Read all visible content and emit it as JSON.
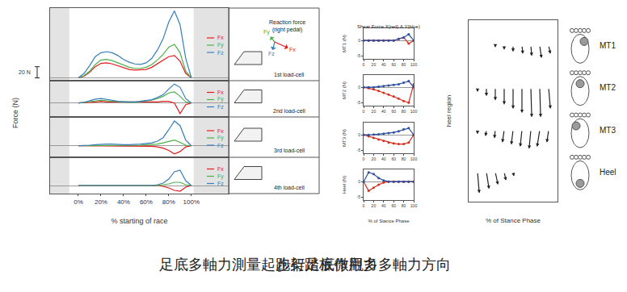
{
  "chart_data": [
    {
      "type": "line",
      "title": "1st load-cell",
      "x": [
        0,
        5,
        10,
        15,
        20,
        25,
        30,
        35,
        40,
        45,
        50,
        55,
        60,
        65,
        70,
        75,
        80,
        85,
        90,
        95,
        100
      ],
      "xlim": [
        -25,
        133
      ],
      "ylim": [
        -5,
        125
      ],
      "tick_labels": false,
      "legend": "right",
      "grid": false,
      "series": [
        {
          "name": "Fx",
          "color": "#e41a1c",
          "values": [
            0,
            3,
            10,
            20,
            26,
            27,
            25,
            22,
            18,
            15,
            14,
            14,
            15,
            19,
            25,
            31,
            38,
            40,
            30,
            8,
            0
          ]
        },
        {
          "name": "Fy",
          "color": "#4daf4a",
          "values": [
            0,
            4,
            12,
            24,
            32,
            33,
            31,
            27,
            22,
            19,
            17,
            17,
            19,
            24,
            32,
            42,
            55,
            60,
            45,
            12,
            0
          ]
        },
        {
          "name": "Fz",
          "color": "#377eb8",
          "values": [
            0,
            8,
            22,
            38,
            45,
            47,
            45,
            40,
            33,
            28,
            25,
            24,
            27,
            35,
            50,
            70,
            100,
            120,
            95,
            35,
            0
          ]
        }
      ]
    },
    {
      "type": "line",
      "title": "2nd load-cell",
      "x": [
        0,
        5,
        10,
        15,
        20,
        25,
        30,
        35,
        40,
        45,
        50,
        55,
        60,
        65,
        70,
        75,
        80,
        85,
        90,
        95,
        100
      ],
      "xlim": [
        -25,
        133
      ],
      "ylim": [
        -25,
        40
      ],
      "tick_labels": false,
      "legend": "right",
      "grid": false,
      "series": [
        {
          "name": "Fx",
          "color": "#e41a1c",
          "values": [
            0,
            0,
            1,
            2,
            3,
            2,
            2,
            1,
            1,
            1,
            1,
            1,
            1,
            2,
            2,
            3,
            3,
            0,
            -19,
            -3,
            0
          ]
        },
        {
          "name": "Fy",
          "color": "#4daf4a",
          "values": [
            0,
            1,
            2,
            4,
            5,
            4,
            3,
            2,
            1,
            1,
            1,
            2,
            3,
            5,
            8,
            12,
            18,
            20,
            12,
            2,
            0
          ]
        },
        {
          "name": "Fz",
          "color": "#377eb8",
          "values": [
            0,
            1,
            4,
            7,
            8,
            7,
            5,
            3,
            2,
            2,
            2,
            3,
            4,
            6,
            10,
            15,
            25,
            34,
            28,
            8,
            0
          ]
        }
      ]
    },
    {
      "type": "line",
      "title": "3rd load-cell",
      "x": [
        0,
        5,
        10,
        15,
        20,
        25,
        30,
        35,
        40,
        45,
        50,
        55,
        60,
        65,
        70,
        75,
        80,
        85,
        90,
        95,
        100
      ],
      "xlim": [
        -25,
        133
      ],
      "ylim": [
        -20,
        50
      ],
      "tick_labels": false,
      "legend": "right",
      "grid": false,
      "series": [
        {
          "name": "Fx",
          "color": "#e41a1c",
          "values": [
            0,
            0,
            0,
            0,
            0,
            0,
            0,
            0,
            0,
            0,
            0,
            0,
            0,
            -1,
            -2,
            -4,
            -8,
            -14,
            -10,
            -2,
            0
          ]
        },
        {
          "name": "Fy",
          "color": "#4daf4a",
          "values": [
            0,
            0,
            0,
            1,
            1,
            1,
            1,
            1,
            1,
            1,
            1,
            1,
            2,
            2,
            3,
            5,
            8,
            10,
            6,
            1,
            0
          ]
        },
        {
          "name": "Fz",
          "color": "#377eb8",
          "values": [
            0,
            0,
            1,
            2,
            3,
            3,
            3,
            2,
            2,
            2,
            2,
            3,
            4,
            5,
            8,
            14,
            28,
            43,
            35,
            10,
            0
          ]
        }
      ]
    },
    {
      "type": "line",
      "title": "4th load-cell",
      "xlabel": "% starting of race",
      "x": [
        0,
        5,
        10,
        15,
        20,
        25,
        30,
        35,
        40,
        45,
        50,
        55,
        60,
        65,
        70,
        75,
        80,
        85,
        90,
        95,
        100
      ],
      "xlim": [
        -25,
        133
      ],
      "ylim": [
        -10,
        35
      ],
      "tick_labels": "x",
      "legend": "right",
      "grid": false,
      "xticks": [
        {
          "value": 0,
          "label": "0%"
        },
        {
          "value": 20,
          "label": "20%"
        },
        {
          "value": 40,
          "label": "40%"
        },
        {
          "value": 60,
          "label": "60%"
        },
        {
          "value": 80,
          "label": "80%"
        },
        {
          "value": 100,
          "label": "100%"
        }
      ],
      "series": [
        {
          "name": "Fx",
          "color": "#e41a1c",
          "values": [
            0,
            0,
            0,
            0,
            0,
            0,
            0,
            0,
            0,
            0,
            0,
            0,
            0,
            0,
            0,
            -1,
            -3,
            -6,
            -7,
            -2,
            0
          ]
        },
        {
          "name": "Fy",
          "color": "#4daf4a",
          "values": [
            0,
            0,
            0,
            0,
            0,
            0,
            0,
            0,
            0,
            0,
            0,
            0,
            0,
            0,
            0,
            1,
            2,
            4,
            4,
            1,
            0
          ]
        },
        {
          "name": "Fz",
          "color": "#377eb8",
          "values": [
            0,
            0,
            0,
            0,
            0,
            0,
            0,
            0,
            0,
            0,
            0,
            0,
            0,
            0,
            1,
            3,
            8,
            17,
            19,
            6,
            0
          ]
        }
      ]
    },
    {
      "type": "line",
      "title": "Shear Force X(red) & Y(blue)",
      "ylabel": "MT1 (N)",
      "x": [
        0,
        10,
        20,
        30,
        40,
        50,
        60,
        70,
        80,
        90,
        100
      ],
      "xlim": [
        0,
        100
      ],
      "ylim": [
        -6,
        4
      ],
      "xticks": [
        0,
        20,
        40,
        60,
        80,
        100
      ],
      "yticks": [
        -5,
        0
      ],
      "tick_labels": true,
      "grid": false,
      "series": [
        {
          "name": "X",
          "color": "#d7301f",
          "marker": "circle",
          "values": [
            0,
            0,
            0,
            0,
            0,
            0,
            0,
            0.5,
            1,
            -1,
            0
          ]
        },
        {
          "name": "Y",
          "color": "#2b4ea2",
          "marker": "circle",
          "values": [
            0,
            0,
            0,
            0,
            0,
            0,
            0,
            0.5,
            1,
            2,
            0
          ]
        }
      ]
    },
    {
      "type": "line",
      "ylabel": "MT2 (N)",
      "x": [
        0,
        10,
        20,
        30,
        40,
        50,
        60,
        70,
        80,
        90,
        100
      ],
      "xlim": [
        0,
        100
      ],
      "ylim": [
        -6,
        4
      ],
      "xticks": [
        0,
        20,
        40,
        60,
        80,
        100
      ],
      "yticks": [
        -5,
        0
      ],
      "tick_labels": true,
      "grid": false,
      "series": [
        {
          "name": "X",
          "color": "#d7301f",
          "marker": "circle",
          "values": [
            0,
            -0.3,
            -0.7,
            -1.2,
            -1.8,
            -2.4,
            -3,
            -3.7,
            -4.5,
            -5,
            1
          ]
        },
        {
          "name": "Y",
          "color": "#2b4ea2",
          "marker": "circle",
          "values": [
            0,
            0,
            0,
            0.2,
            0.4,
            0.6,
            0.8,
            1,
            1.5,
            2,
            0
          ]
        }
      ]
    },
    {
      "type": "line",
      "ylabel": "MT3 (N)",
      "x": [
        0,
        10,
        20,
        30,
        40,
        50,
        60,
        70,
        80,
        90,
        100
      ],
      "xlim": [
        0,
        100
      ],
      "ylim": [
        -6,
        4
      ],
      "xticks": [
        0,
        20,
        40,
        60,
        80,
        100
      ],
      "yticks": [
        -5,
        0
      ],
      "tick_labels": true,
      "grid": false,
      "series": [
        {
          "name": "X",
          "color": "#d7301f",
          "marker": "circle",
          "values": [
            0,
            -0.5,
            -1,
            -1.5,
            -2,
            -2.5,
            -2.8,
            -3,
            -3,
            -2.5,
            0
          ]
        },
        {
          "name": "Y",
          "color": "#2b4ea2",
          "marker": "circle",
          "values": [
            0,
            0,
            0.1,
            0.2,
            0.4,
            0.6,
            0.8,
            1.2,
            1.8,
            2.2,
            0
          ]
        }
      ]
    },
    {
      "type": "line",
      "ylabel": "Heel (N)",
      "xlabel": "% of Stance Phase",
      "x": [
        0,
        10,
        20,
        30,
        40,
        50,
        60,
        70,
        80,
        90,
        100
      ],
      "xlim": [
        0,
        100
      ],
      "ylim": [
        -6,
        4
      ],
      "xticks": [
        0,
        20,
        40,
        60,
        80,
        100
      ],
      "yticks": [
        -5,
        0
      ],
      "tick_labels": true,
      "grid": false,
      "series": [
        {
          "name": "X",
          "color": "#d7301f",
          "marker": "circle",
          "values": [
            0,
            -3,
            -2,
            -1,
            -0.3,
            0,
            0,
            0,
            0,
            0,
            0
          ]
        },
        {
          "name": "Y",
          "color": "#2b4ea2",
          "marker": "circle",
          "values": [
            0,
            3,
            2.5,
            1.2,
            0.4,
            0,
            0,
            0,
            0,
            0,
            0
          ]
        }
      ]
    },
    {
      "type": "quiver",
      "xlabel": "% of Stance Phase",
      "ylabel": "heel region",
      "xlim": [
        0,
        100
      ],
      "ylim": [
        -0.7,
        3.6
      ],
      "tick_labels": false,
      "grid": false,
      "x": [
        10,
        20,
        30,
        40,
        50,
        60,
        70,
        80,
        90
      ],
      "rows": [
        {
          "name": "MT1",
          "y": 3,
          "dx": [
            0,
            0,
            0,
            0,
            0,
            1,
            1,
            2,
            2
          ],
          "dy": [
            0,
            0,
            -0.05,
            -0.1,
            -0.15,
            -0.2,
            -0.25,
            -0.3,
            -0.2
          ]
        },
        {
          "name": "MT2",
          "y": 2,
          "dx": [
            0,
            0,
            0,
            0,
            0,
            0,
            1,
            1,
            2
          ],
          "dy": [
            -0.1,
            -0.2,
            -0.3,
            -0.4,
            -0.5,
            -0.6,
            -0.7,
            -0.7,
            -0.5
          ]
        },
        {
          "name": "MT3",
          "y": 1,
          "dx": [
            0,
            -1,
            -1,
            -2,
            -2,
            -2,
            -2,
            -3,
            -2
          ],
          "dy": [
            -0.1,
            -0.15,
            -0.2,
            -0.3,
            -0.35,
            -0.4,
            -0.45,
            -0.4,
            -0.3
          ]
        },
        {
          "name": "Heel",
          "y": 0,
          "dx": [
            2,
            3,
            3,
            2,
            1,
            0,
            0,
            0,
            0
          ],
          "dy": [
            -0.5,
            -0.4,
            -0.3,
            -0.2,
            -0.1,
            0,
            0,
            0,
            0
          ]
        }
      ]
    }
  ],
  "left_panel": {
    "y_label": "Force (N)",
    "scale_bar": {
      "value": 20,
      "label": "20 N"
    },
    "shaded_x": [
      [
        -25,
        -8
      ],
      [
        102,
        133
      ]
    ],
    "header": [
      "Reaction force",
      "(right pedal)"
    ],
    "force_axes": [
      "Fy",
      "Fx",
      "Fz"
    ]
  },
  "captions": [
    "足底多軸力測量起跑架踏板作用力",
    "步行足底微觀多多軸力方向"
  ]
}
